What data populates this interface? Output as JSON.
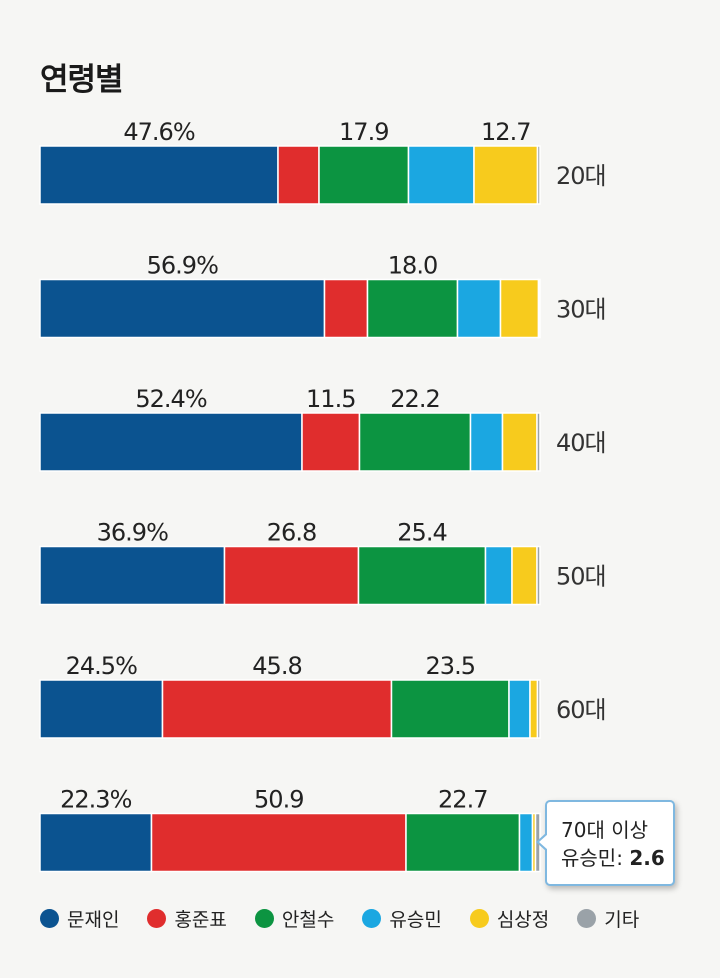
{
  "chart_data": {
    "type": "bar",
    "orientation": "horizontal",
    "stacked": true,
    "title": "연령별",
    "categories": [
      "20대",
      "30대",
      "40대",
      "50대",
      "60대",
      "70대 이상"
    ],
    "series": [
      {
        "name": "문재인",
        "color": "#0b5390",
        "values": [
          47.6,
          56.9,
          52.4,
          36.9,
          24.5,
          22.3
        ]
      },
      {
        "name": "홍준표",
        "color": "#e02d2d",
        "values": [
          8.2,
          8.6,
          11.5,
          26.8,
          45.8,
          50.9
        ]
      },
      {
        "name": "안철수",
        "color": "#0c9441",
        "values": [
          17.9,
          18.0,
          22.2,
          25.4,
          23.5,
          22.7
        ]
      },
      {
        "name": "유승민",
        "color": "#1ba7e1",
        "values": [
          13.1,
          8.6,
          6.4,
          5.3,
          4.2,
          2.6
        ]
      },
      {
        "name": "심상정",
        "color": "#f7cb1d",
        "values": [
          12.7,
          7.6,
          6.9,
          5.0,
          1.5,
          0.6
        ]
      },
      {
        "name": "기타",
        "color": "#9aa2a8",
        "values": [
          0.5,
          0.3,
          0.6,
          0.6,
          0.5,
          0.9
        ]
      }
    ],
    "data_labels": [
      [
        {
          "series": 0,
          "text": "47.6%"
        },
        {
          "series": 2,
          "text": "17.9"
        },
        {
          "series": 4,
          "text": "12.7"
        }
      ],
      [
        {
          "series": 0,
          "text": "56.9%"
        },
        {
          "series": 2,
          "text": "18.0"
        }
      ],
      [
        {
          "series": 0,
          "text": "52.4%"
        },
        {
          "series": 1,
          "text": "11.5"
        },
        {
          "series": 2,
          "text": "22.2"
        }
      ],
      [
        {
          "series": 0,
          "text": "36.9%"
        },
        {
          "series": 1,
          "text": "26.8"
        },
        {
          "series": 2,
          "text": "25.4"
        }
      ],
      [
        {
          "series": 0,
          "text": "24.5%"
        },
        {
          "series": 1,
          "text": "45.8"
        },
        {
          "series": 2,
          "text": "23.5"
        }
      ],
      [
        {
          "series": 0,
          "text": "22.3%"
        },
        {
          "series": 1,
          "text": "50.9"
        },
        {
          "series": 2,
          "text": "22.7"
        }
      ]
    ],
    "xlim": [
      0,
      100
    ],
    "grid": false,
    "legend_position": "bottom",
    "tooltip": {
      "line1": "70대 이상",
      "label": "유승민:",
      "value": "2.6"
    }
  }
}
